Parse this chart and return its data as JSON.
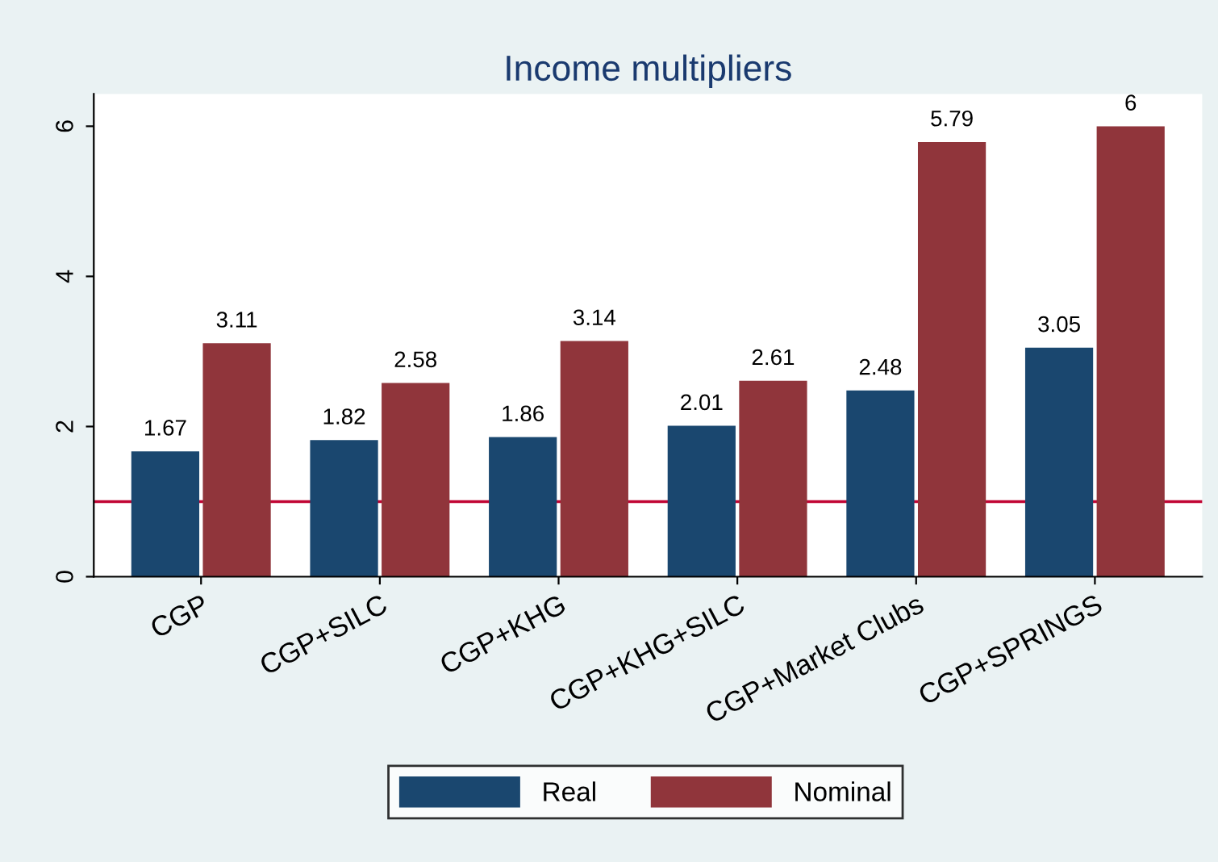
{
  "chart_data": {
    "type": "bar",
    "title": "Income multipliers",
    "categories": [
      "CGP",
      "CGP+SILC",
      "CGP+KHG",
      "CGP+KHG+SILC",
      "CGP+Market Clubs",
      "CGP+SPRINGS"
    ],
    "series": [
      {
        "name": "Real",
        "color": "#1a476f",
        "values": [
          1.67,
          1.82,
          1.86,
          2.01,
          2.48,
          3.05
        ],
        "value_labels": [
          "1.67",
          "1.82",
          "1.86",
          "2.01",
          "2.48",
          "3.05"
        ]
      },
      {
        "name": "Nominal",
        "color": "#90353b",
        "values": [
          3.11,
          2.58,
          3.14,
          2.61,
          5.79,
          6
        ],
        "value_labels": [
          "3.11",
          "2.58",
          "3.14",
          "2.61",
          "5.79",
          "6"
        ]
      }
    ],
    "ylim": [
      0,
      6.43
    ],
    "yticks": [
      0,
      2,
      4,
      6
    ],
    "grid": false,
    "legend": "bottom",
    "ref_lines": [
      {
        "axis": "y",
        "value": 1,
        "color": "#c10534"
      }
    ]
  }
}
